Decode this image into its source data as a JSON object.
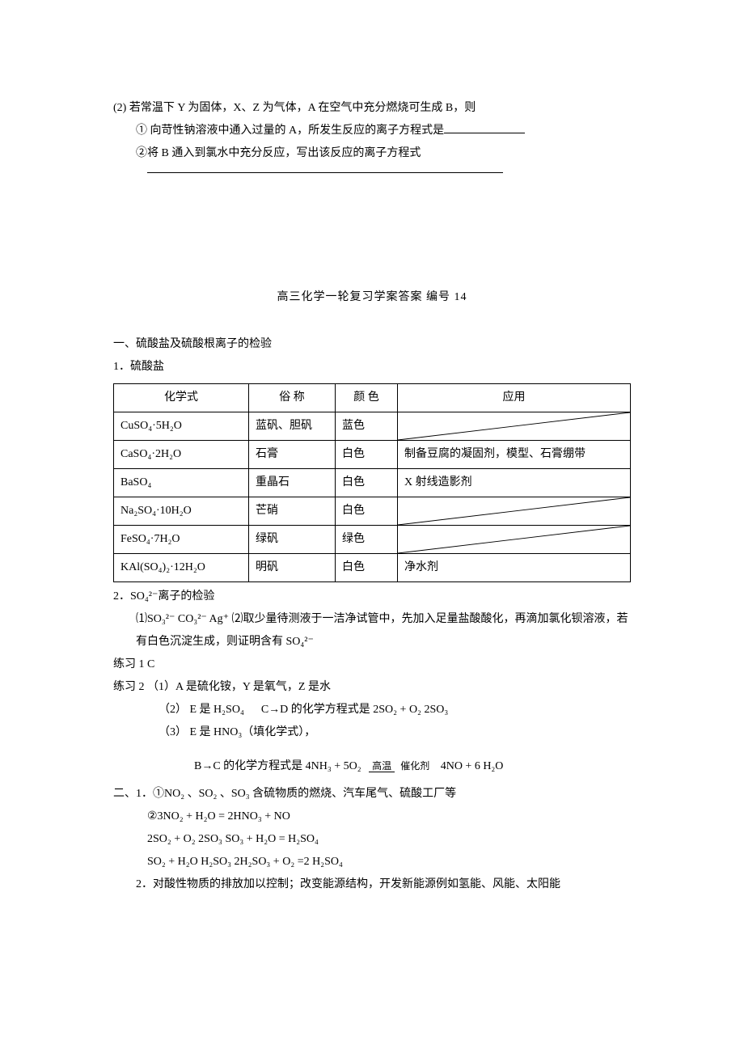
{
  "q2": {
    "stem": "(2) 若常温下 Y 为固体，X、Z 为气体，A 在空气中充分燃烧可生成 B，则",
    "sub1": "① 向苛性钠溶液中通入过量的 A，所发生反应的离子方程式是",
    "sub2": "②将 B 通入到氯水中充分反应，写出该反应的离子方程式"
  },
  "answers": {
    "title": "高三化学一轮复习学案答案    编号 14",
    "sec1_title": "一、硫酸盐及硫酸根离子的检验",
    "sec1_1": "1．硫酸盐",
    "table": {
      "headers": [
        "化学式",
        "俗 称",
        "颜 色",
        "应用"
      ],
      "rows": [
        {
          "formula": "CuSO₄·5H₂O",
          "common": "蓝矾、胆矾",
          "color": "蓝色",
          "use": "",
          "diag": true
        },
        {
          "formula": "CaSO₄·2H₂O",
          "common": "石膏",
          "color": "白色",
          "use": "制备豆腐的凝固剂，模型、石膏绷带",
          "diag": false
        },
        {
          "formula": "BaSO₄",
          "common": "重晶石",
          "color": "白色",
          "use": "X 射线造影剂",
          "diag": false
        },
        {
          "formula": "Na₂SO₄·10H₂O",
          "common": "芒硝",
          "color": "白色",
          "use": "",
          "diag": true
        },
        {
          "formula": "FeSO₄·7H₂O",
          "common": "绿矾",
          "color": "绿色",
          "use": "",
          "diag": true
        },
        {
          "formula": "KAl(SO₄)₂·12H₂O",
          "common": "明矾",
          "color": "白色",
          "use": "净水剂",
          "diag": false
        }
      ]
    },
    "sec1_2_label": "2．SO₄²⁻离子的检验",
    "sec1_2_line": "⑴SO₃²⁻ CO₃²⁻ Ag⁺    ⑵取少量待测液于一洁净试管中，先加入足量盐酸酸化，再滴加氯化钡溶液，若有白色沉淀生成，则证明含有 SO₄²⁻",
    "ex1": "练习 1  C",
    "ex2_label": "练习 2  ",
    "ex2_1": "（1）A 是硫化铵，Y 是氧气，Z 是水",
    "ex2_2a": "（2） E 是 H₂SO₄",
    "ex2_2b": "C→D 的化学方程式是 2SO₂ + O₂    2SO₃",
    "ex2_3": "（3） E 是 HNO₃（填化学式），",
    "ex2_bc_pre": "B→C 的化学方程式是 4NH₃ + 5O₂",
    "ex2_bc_cond_top": "高温",
    "ex2_bc_cond_bot": "催化剂",
    "ex2_bc_post": "4NO + 6 H₂O",
    "sec2_1": "二、1．①NO₂ 、SO₂ 、SO₃   含硫物质的燃烧、汽车尾气、硫酸工厂等",
    "sec2_1b": "②3NO₂ + H₂O = 2HNO₃ + NO",
    "sec2_eq1": "2SO₂ + O₂    2SO₃     SO₃ + H₂O = H₂SO₄",
    "sec2_eq2": "SO₂ + H₂O H₂SO₃       2H₂SO₃ + O₂ =2 H₂SO₄",
    "sec2_2": "2．对酸性物质的排放加以控制；改变能源结构，开发新能源例如氢能、风能、太阳能"
  }
}
